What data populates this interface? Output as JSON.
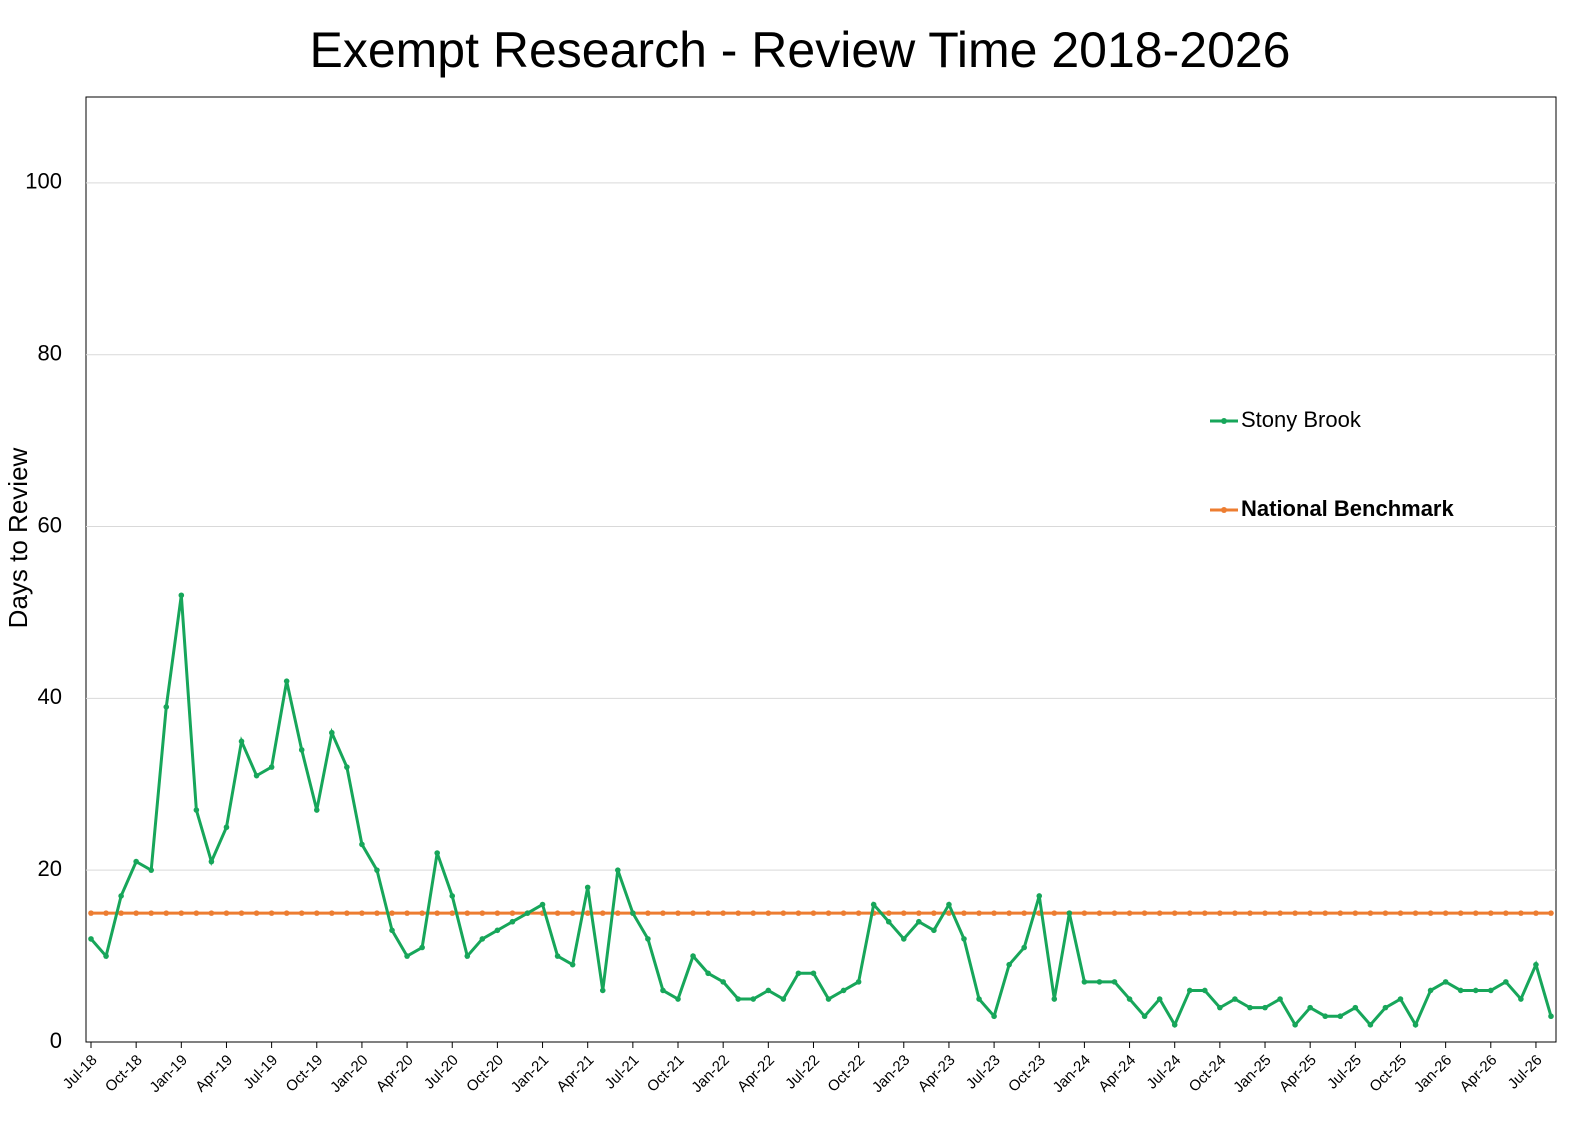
{
  "chart_data": {
    "type": "line",
    "title": "Exempt Research - Review Time 2018-2026",
    "y_label": "Days to Review",
    "categories": [
      "Jul-18",
      null,
      null,
      "Oct-18",
      null,
      null,
      "Jan-19",
      null,
      null,
      "Apr-19",
      null,
      null,
      "Jul-19",
      null,
      null,
      "Oct-19",
      null,
      null,
      "Jan-20",
      null,
      null,
      "Apr-20",
      null,
      null,
      "Jul-20",
      null,
      null,
      "Oct-20",
      null,
      null,
      "Jan-21",
      null,
      null,
      "Apr-21",
      null,
      null,
      "Jul-21",
      null,
      null,
      "Oct-21",
      null,
      null,
      "Jan-22",
      null,
      null,
      "Apr-22",
      null,
      null,
      "Jul-22",
      null,
      null,
      "Oct-22",
      null,
      null,
      "Jan-23",
      null,
      null,
      "Apr-23",
      null,
      null,
      "Jul-23",
      null,
      null,
      "Oct-23",
      null,
      null,
      "Jan-24",
      null,
      null,
      "Apr-24",
      null,
      null,
      "Jul-24",
      null,
      null,
      "Oct-24",
      null,
      null,
      "Jan-25",
      null,
      null,
      "Apr-25",
      null,
      null,
      "Jul-25",
      null,
      null,
      "Oct-25",
      null,
      null,
      "Jan-26",
      null,
      null,
      "Apr-26",
      null,
      null,
      "Jul-26",
      null
    ],
    "series": [
      {
        "name": "Stony Brook",
        "color": "#17a65a",
        "values": [
          12,
          10,
          17,
          21,
          20,
          39,
          52,
          27,
          21,
          25,
          35,
          31,
          32,
          42,
          34,
          27,
          36,
          32,
          23,
          20,
          13,
          10,
          11,
          22,
          17,
          10,
          12,
          13,
          14,
          15,
          16,
          10,
          9,
          18,
          6,
          20,
          15,
          12,
          6,
          5,
          10,
          8,
          7,
          5,
          5,
          6,
          5,
          8,
          8,
          5,
          6,
          7,
          16,
          14,
          12,
          14,
          13,
          16,
          12,
          5,
          3,
          9,
          11,
          17,
          5,
          15,
          7,
          7,
          7,
          5,
          3,
          5,
          2,
          6,
          6,
          4,
          5,
          4,
          4,
          5,
          2,
          4,
          3,
          3,
          4,
          2,
          4,
          5,
          2,
          6,
          7,
          6,
          6,
          6,
          7,
          5,
          9,
          3
        ]
      },
      {
        "name": "National Benchmark",
        "color": "#ed7d31",
        "values": [
          15,
          15,
          15,
          15,
          15,
          15,
          15,
          15,
          15,
          15,
          15,
          15,
          15,
          15,
          15,
          15,
          15,
          15,
          15,
          15,
          15,
          15,
          15,
          15,
          15,
          15,
          15,
          15,
          15,
          15,
          15,
          15,
          15,
          15,
          15,
          15,
          15,
          15,
          15,
          15,
          15,
          15,
          15,
          15,
          15,
          15,
          15,
          15,
          15,
          15,
          15,
          15,
          15,
          15,
          15,
          15,
          15,
          15,
          15,
          15,
          15,
          15,
          15,
          15,
          15,
          15,
          15,
          15,
          15,
          15,
          15,
          15,
          15,
          15,
          15,
          15,
          15,
          15,
          15,
          15,
          15,
          15,
          15,
          15,
          15,
          15,
          15,
          15,
          15,
          15,
          15,
          15,
          15,
          15,
          15,
          15,
          15,
          15
        ]
      }
    ],
    "ylim": [
      0,
      110
    ],
    "yticks": [
      0,
      20,
      40,
      60,
      80,
      100
    ],
    "grid": true,
    "legend": "right"
  }
}
